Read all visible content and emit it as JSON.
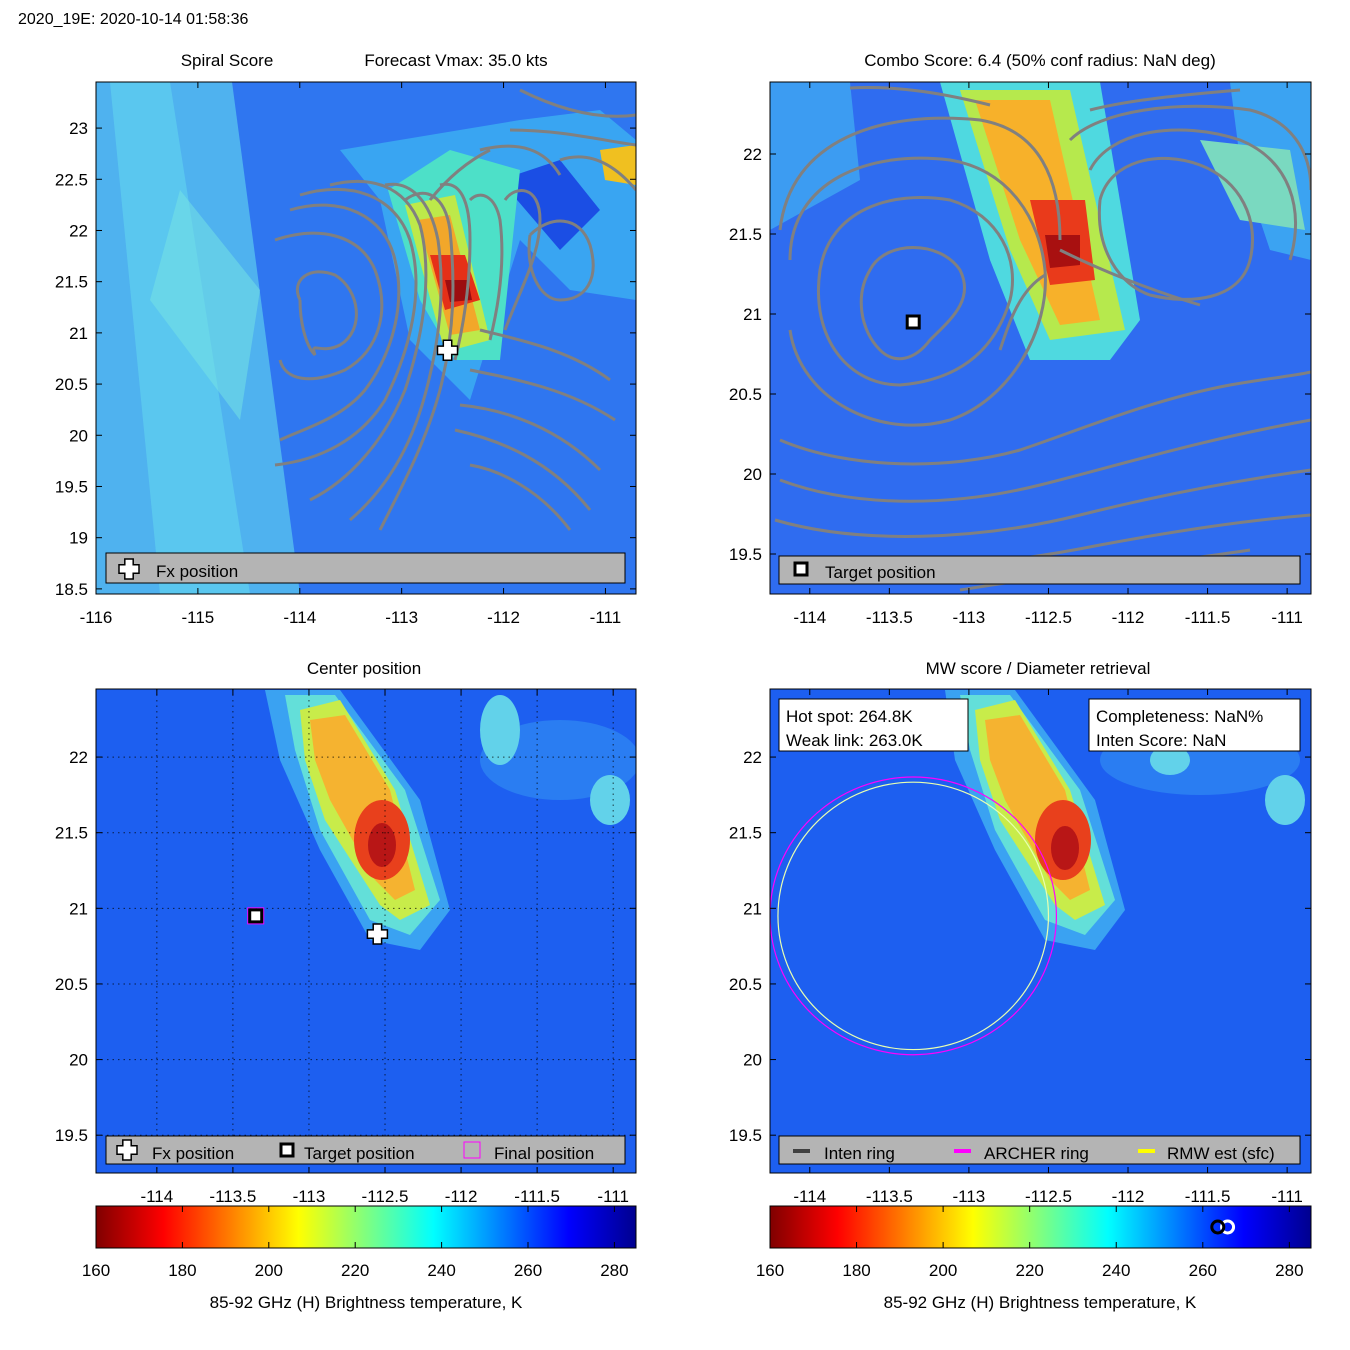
{
  "header": {
    "title": "2020_19E: 2020-10-14 01:58:36"
  },
  "colors": {
    "contour": "#808080",
    "legend_bg": "#b4b4b4",
    "archer_ring": "#ff00ff",
    "rmw_ring": "#ffff00",
    "inten_ring": "#404040"
  },
  "colorbar": {
    "label": "85-92 GHz (H) Brightness temperature, K",
    "ticks": [
      160,
      180,
      200,
      220,
      240,
      260,
      280
    ],
    "min": 160,
    "max": 285
  },
  "panels": {
    "spiral": {
      "title_left": "Spiral Score",
      "title_right": "Forecast Vmax: 35.0 kts",
      "xlim": [
        -116,
        -110.7
      ],
      "ylim": [
        18.45,
        23.45
      ],
      "xticks": [
        -116,
        -115,
        -114,
        -113,
        -112,
        -111
      ],
      "yticks": [
        18.5,
        19,
        19.5,
        20,
        20.5,
        21,
        21.5,
        22,
        22.5,
        23
      ],
      "fx_position": {
        "lon": -112.55,
        "lat": 20.83
      },
      "legend": [
        {
          "icon": "plus",
          "label": "Fx position"
        }
      ]
    },
    "combo": {
      "title": "Combo Score: 6.4  (50% conf radius: NaN deg)",
      "xlim": [
        -114.25,
        -110.85
      ],
      "ylim": [
        19.25,
        22.45
      ],
      "xticks": [
        -114,
        -113.5,
        -113,
        -112.5,
        -112,
        -111.5,
        -111
      ],
      "yticks": [
        19.5,
        20,
        20.5,
        21,
        21.5,
        22
      ],
      "target_position": {
        "lon": -113.35,
        "lat": 20.95
      },
      "legend": [
        {
          "icon": "square",
          "label": "Target position"
        }
      ]
    },
    "center": {
      "title": "Center position",
      "xlim": [
        -114.4,
        -110.85
      ],
      "ylim": [
        19.25,
        22.45
      ],
      "xticks": [
        -114,
        -113.5,
        -113,
        -112.5,
        -112,
        -111.5,
        -111
      ],
      "yticks": [
        19.5,
        20,
        20.5,
        21,
        21.5,
        22
      ],
      "fx_position": {
        "lon": -112.55,
        "lat": 20.83
      },
      "target_position": {
        "lon": -113.35,
        "lat": 20.95
      },
      "final_position": {
        "lon": -113.35,
        "lat": 20.95
      },
      "legend": [
        {
          "icon": "plus",
          "label": "Fx position"
        },
        {
          "icon": "square",
          "label": "Target position"
        },
        {
          "icon": "magenta-square",
          "label": "Final position"
        }
      ]
    },
    "mw": {
      "title": "MW score / Diameter retrieval",
      "xlim": [
        -114.25,
        -110.85
      ],
      "ylim": [
        19.25,
        22.45
      ],
      "xticks": [
        -114,
        -113.5,
        -113,
        -112.5,
        -112,
        -111.5,
        -111
      ],
      "yticks": [
        19.5,
        20,
        20.5,
        21,
        21.5,
        22
      ],
      "hot_spot_label": "Hot spot: 264.8K",
      "weak_link_label": "Weak link: 263.0K",
      "completeness_label": "Completeness: NaN%",
      "inten_score_label": "Inten Score: NaN",
      "hot_spot_K": 264.8,
      "weak_link_K": 263.0,
      "ring_center": {
        "lon": -113.35,
        "lat": 20.95
      },
      "archer_ring_radius_deg": 0.9,
      "rmw_ring_radius_deg": 0.85,
      "legend": [
        {
          "icon": "dark-line",
          "label": "Inten ring"
        },
        {
          "icon": "magenta-line",
          "label": "ARCHER ring"
        },
        {
          "icon": "yellow-line",
          "label": "RMW est (sfc)"
        }
      ]
    }
  }
}
